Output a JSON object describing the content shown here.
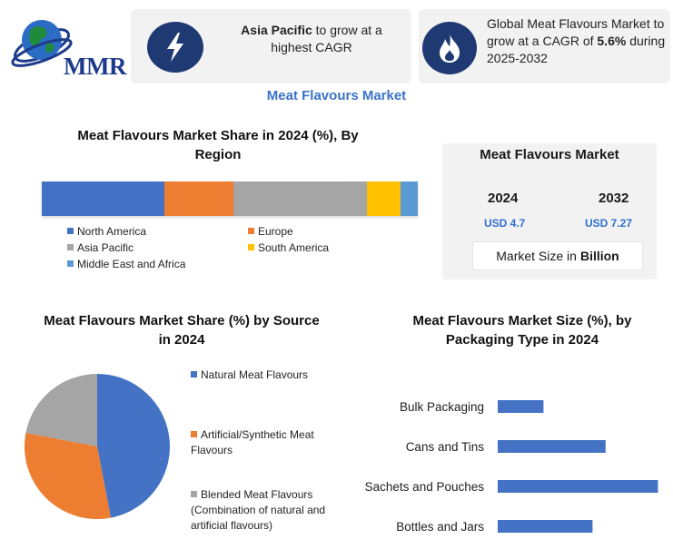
{
  "logo": {
    "text": "MMR"
  },
  "cards": {
    "cagr_region_bold": "Asia Pacific",
    "cagr_region_rest": " to grow at a highest CAGR",
    "global_pre": "Global Meat Flavours Market to grow at a CAGR of ",
    "global_bold": "5.6%",
    "global_post": " during 2025-2032"
  },
  "main_title": "Meat Flavours Market",
  "stats": {
    "title": "Meat Flavours Market",
    "year_1": "2024",
    "value_1": "USD 4.7",
    "year_2": "2032",
    "value_2": "USD 7.27",
    "foot_label": "Market Size in",
    "foot_bold": "Billion"
  },
  "colors": {
    "blue": "#4472c4",
    "orange": "#ed7d31",
    "gray": "#a5a5a5",
    "yellow": "#ffc000",
    "light_blue": "#5b9bd5"
  },
  "chart_data": [
    {
      "type": "bar",
      "stacked": true,
      "orientation": "horizontal",
      "title": "Meat Flavours Market Share in 2024 (%), By Region",
      "series": [
        {
          "name": "North America",
          "value": 32.5,
          "color": "#4472c4"
        },
        {
          "name": "Europe",
          "value": 18.5,
          "color": "#ed7d31"
        },
        {
          "name": "Asia Pacific",
          "value": 35.5,
          "color": "#a5a5a5"
        },
        {
          "name": "South America",
          "value": 9.0,
          "color": "#ffc000"
        },
        {
          "name": "Middle East and Africa",
          "value": 4.5,
          "color": "#5b9bd5"
        }
      ],
      "legend": "bottom"
    },
    {
      "type": "pie",
      "title": "Meat Flavours Market  Share (%) by Source in 2024",
      "slices": [
        {
          "label": "Natural Meat Flavours",
          "value": 47,
          "color": "#4472c4"
        },
        {
          "label": "Artificial/Synthetic Meat Flavours",
          "value": 31,
          "color": "#ed7d31"
        },
        {
          "label": "Blended Meat Flavours (Combination of natural and artificial flavours)",
          "value": 22,
          "color": "#a5a5a5"
        }
      ],
      "legend": "right"
    },
    {
      "type": "bar",
      "orientation": "horizontal",
      "title": "Meat Flavours Market Size (%), by Packaging Type in 2024",
      "categories": [
        "Bulk Packaging",
        "Cans and Tins",
        "Sachets and Pouches",
        "Bottles and Jars"
      ],
      "values": [
        14,
        33,
        49,
        29
      ],
      "color": "#4472c4",
      "xlim": [
        0,
        50
      ]
    }
  ]
}
